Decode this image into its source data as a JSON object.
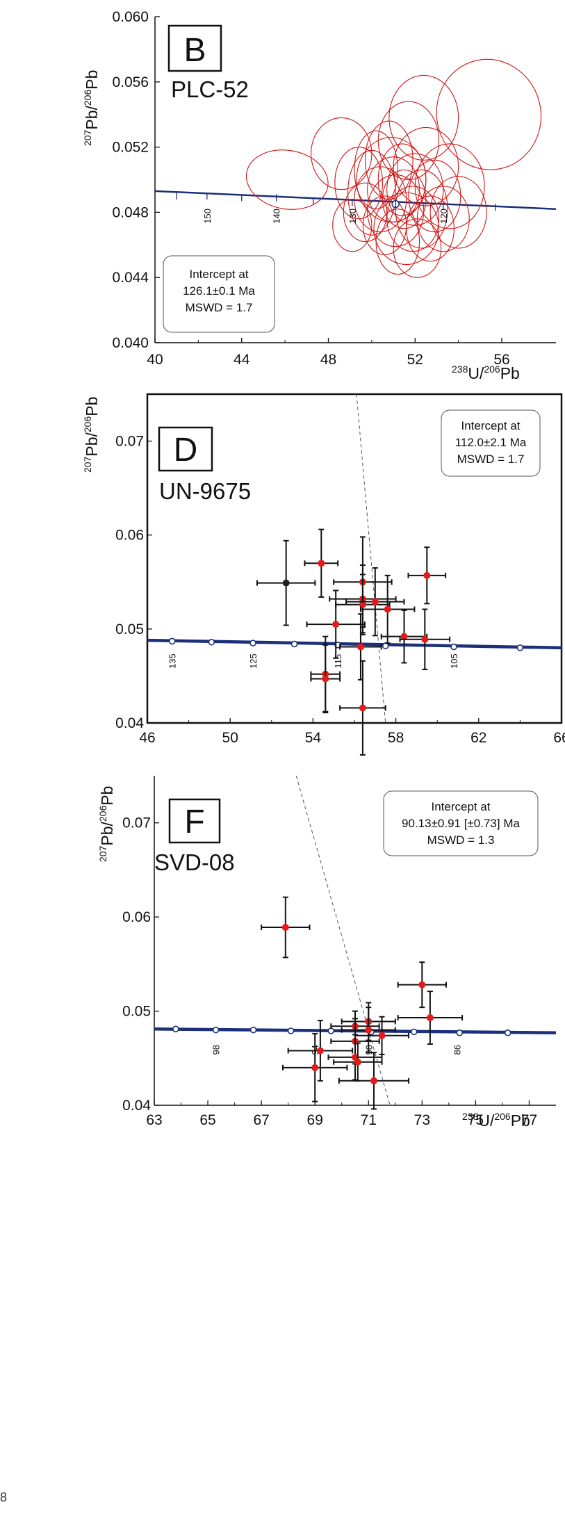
{
  "edge_mark": "8",
  "chart_data": [
    {
      "id": "B",
      "type": "scatter",
      "panel_letter": "B",
      "sample": "PLC-52",
      "xlabel": "238U/206Pb",
      "ylabel": "207Pb/206Pb",
      "xlim": [
        40,
        58.5
      ],
      "ylim": [
        0.04,
        0.06
      ],
      "xticks": [
        "40",
        "44",
        "48",
        "52",
        "56"
      ],
      "yticks": [
        "0.040",
        "0.044",
        "0.048",
        "0.052",
        "0.056",
        "0.060"
      ],
      "intercept": [
        "Intercept at",
        "126.1±0.1 Ma",
        "MSWD = 1.7"
      ],
      "concordia": {
        "ages": [
          150,
          140,
          130,
          120
        ],
        "points": [
          [
            41.0,
            0.049
          ],
          [
            42.4,
            0.049
          ],
          [
            44.0,
            0.0489
          ],
          [
            45.6,
            0.0489
          ],
          [
            47.3,
            0.0487
          ],
          [
            49.1,
            0.0486
          ],
          [
            51.1,
            0.0485
          ],
          [
            53.3,
            0.0484
          ],
          [
            55.7,
            0.0483
          ]
        ],
        "line": [
          [
            40,
            0.0493
          ],
          [
            58.5,
            0.0482
          ]
        ]
      },
      "ellipses": [
        [
          46.1,
          0.05,
          1.9,
          0.0018,
          10
        ],
        [
          48.6,
          0.0516,
          1.4,
          0.0022,
          0
        ],
        [
          49.4,
          0.0498,
          1.1,
          0.0022,
          0
        ],
        [
          49.7,
          0.048,
          1.0,
          0.0018,
          0
        ],
        [
          50.2,
          0.0506,
          1.0,
          0.0024,
          0
        ],
        [
          50.4,
          0.0488,
          1.2,
          0.002,
          0
        ],
        [
          50.6,
          0.0472,
          1.0,
          0.0018,
          0
        ],
        [
          50.8,
          0.0512,
          1.1,
          0.0024,
          0
        ],
        [
          51.0,
          0.0494,
          1.2,
          0.002,
          0
        ],
        [
          51.1,
          0.0481,
          1.3,
          0.0022,
          0
        ],
        [
          51.2,
          0.0462,
          1.0,
          0.002,
          0
        ],
        [
          51.4,
          0.05,
          1.1,
          0.0022,
          0
        ],
        [
          51.5,
          0.0488,
          1.0,
          0.0018,
          0
        ],
        [
          51.7,
          0.0524,
          1.4,
          0.0024,
          0
        ],
        [
          51.9,
          0.0476,
          1.2,
          0.002,
          0
        ],
        [
          52.0,
          0.0494,
          1.3,
          0.0022,
          0
        ],
        [
          52.1,
          0.0458,
          1.1,
          0.0018,
          0
        ],
        [
          52.3,
          0.0482,
          1.2,
          0.0024,
          0
        ],
        [
          52.5,
          0.0508,
          1.5,
          0.0024,
          0
        ],
        [
          52.7,
          0.047,
          1.1,
          0.002,
          0
        ],
        [
          52.9,
          0.049,
          1.2,
          0.0022,
          0
        ],
        [
          53.3,
          0.0476,
          1.2,
          0.002,
          0
        ],
        [
          53.6,
          0.0496,
          1.6,
          0.0026,
          0
        ],
        [
          54.0,
          0.048,
          1.3,
          0.0022,
          0
        ],
        [
          50.0,
          0.0492,
          1.1,
          0.0026,
          0
        ],
        [
          51.6,
          0.047,
          1.5,
          0.0022,
          0
        ],
        [
          52.4,
          0.0538,
          1.6,
          0.0026,
          0
        ],
        [
          55.4,
          0.054,
          2.4,
          0.0034,
          -15
        ],
        [
          49.1,
          0.0472,
          0.9,
          0.0016,
          0
        ],
        [
          50.9,
          0.05,
          1.6,
          0.0026,
          0
        ]
      ]
    },
    {
      "id": "D",
      "type": "scatter",
      "panel_letter": "D",
      "sample": "UN-9675",
      "xlabel": "",
      "ylabel": "207Pb/206Pb",
      "xlim": [
        46,
        66
      ],
      "ylim": [
        0.04,
        0.075
      ],
      "xticks": [
        "46",
        "50",
        "54",
        "58",
        "62",
        "66"
      ],
      "yticks": [
        "0.04",
        "0.05",
        "0.06",
        "0.07"
      ],
      "intercept": [
        "Intercept at",
        "112.0±2.1 Ma",
        "MSWD = 1.7"
      ],
      "concordia": {
        "ages": [
          135,
          125,
          115,
          105
        ],
        "age_label_x": [
          47.2,
          51.1,
          55.2,
          60.8
        ],
        "points": [
          [
            47.2,
            0.0487
          ],
          [
            49.1,
            0.0486
          ],
          [
            51.1,
            0.0485
          ],
          [
            53.1,
            0.0484
          ],
          [
            55.2,
            0.0483
          ],
          [
            57.5,
            0.0482
          ],
          [
            60.8,
            0.0481
          ],
          [
            64.0,
            0.048
          ]
        ],
        "line": [
          [
            46,
            0.0488
          ],
          [
            66,
            0.048
          ]
        ]
      },
      "discordia": [
        [
          56.1,
          0.075
        ],
        [
          57.5,
          0.04
        ]
      ],
      "points": [
        {
          "x": 52.7,
          "y": 0.0549,
          "ex": 1.4,
          "ey": 0.0045,
          "c": "black"
        },
        {
          "x": 54.4,
          "y": 0.057,
          "ex": 0.8,
          "ey": 0.0036,
          "c": "red"
        },
        {
          "x": 56.4,
          "y": 0.055,
          "ex": 1.4,
          "ey": 0.0048,
          "c": "red"
        },
        {
          "x": 59.5,
          "y": 0.0557,
          "ex": 0.9,
          "ey": 0.003,
          "c": "red"
        },
        {
          "x": 56.4,
          "y": 0.0532,
          "ex": 1.6,
          "ey": 0.0036,
          "c": "red"
        },
        {
          "x": 56.4,
          "y": 0.0526,
          "ex": 1.3,
          "ey": 0.0032,
          "c": "red"
        },
        {
          "x": 57.0,
          "y": 0.0529,
          "ex": 1.4,
          "ey": 0.0036,
          "c": "red"
        },
        {
          "x": 57.6,
          "y": 0.0521,
          "ex": 1.3,
          "ey": 0.0036,
          "c": "red"
        },
        {
          "x": 55.1,
          "y": 0.0505,
          "ex": 1.4,
          "ey": 0.0036,
          "c": "red"
        },
        {
          "x": 58.4,
          "y": 0.0492,
          "ex": 1.1,
          "ey": 0.0028,
          "c": "red"
        },
        {
          "x": 59.4,
          "y": 0.0489,
          "ex": 1.2,
          "ey": 0.0032,
          "c": "red"
        },
        {
          "x": 56.3,
          "y": 0.0481,
          "ex": 1.0,
          "ey": 0.0035,
          "c": "red"
        },
        {
          "x": 54.6,
          "y": 0.0452,
          "ex": 0.7,
          "ey": 0.004,
          "c": "red"
        },
        {
          "x": 54.6,
          "y": 0.0447,
          "ex": 0.7,
          "ey": 0.0036,
          "c": "red"
        },
        {
          "x": 56.4,
          "y": 0.0416,
          "ex": 1.1,
          "ey": 0.005,
          "c": "red"
        }
      ]
    },
    {
      "id": "F",
      "type": "scatter",
      "panel_letter": "F",
      "sample": "SVD-08",
      "xlabel": "238U/206Pb",
      "ylabel": "207Pb/206Pb",
      "xlim": [
        63,
        78
      ],
      "ylim": [
        0.04,
        0.075
      ],
      "xticks": [
        "63",
        "65",
        "67",
        "69",
        "71",
        "73",
        "75",
        "77"
      ],
      "yticks": [
        "0.04",
        "0.05",
        "0.06",
        "0.07"
      ],
      "intercept": [
        "Intercept at",
        "90.13±0.91   [±0.73]  Ma",
        "MSWD = 1.3"
      ],
      "concordia": {
        "ages": [
          98,
          94,
          90,
          86
        ],
        "age_label_x": [
          65.3,
          69.0,
          71.0,
          74.3
        ],
        "points": [
          [
            63.8,
            0.0481
          ],
          [
            65.3,
            0.048
          ],
          [
            66.7,
            0.048
          ],
          [
            68.1,
            0.0479
          ],
          [
            69.6,
            0.0479
          ],
          [
            71.1,
            0.0478
          ],
          [
            72.7,
            0.0478
          ],
          [
            74.4,
            0.0477
          ],
          [
            76.2,
            0.0477
          ]
        ],
        "line": [
          [
            63,
            0.0481
          ],
          [
            78,
            0.0477
          ]
        ]
      },
      "discordia": [
        [
          68.3,
          0.075
        ],
        [
          71.8,
          0.04
        ]
      ],
      "points": [
        {
          "x": 67.9,
          "y": 0.0589,
          "ex": 0.9,
          "ey": 0.0032,
          "c": "red"
        },
        {
          "x": 73.0,
          "y": 0.0528,
          "ex": 0.9,
          "ey": 0.0024,
          "c": "red"
        },
        {
          "x": 73.3,
          "y": 0.0493,
          "ex": 1.2,
          "ey": 0.0028,
          "c": "red"
        },
        {
          "x": 71.0,
          "y": 0.0489,
          "ex": 1.0,
          "ey": 0.002,
          "c": "red"
        },
        {
          "x": 70.5,
          "y": 0.0484,
          "ex": 0.9,
          "ey": 0.0016,
          "c": "red"
        },
        {
          "x": 71.0,
          "y": 0.048,
          "ex": 1.0,
          "ey": 0.0024,
          "c": "red"
        },
        {
          "x": 71.5,
          "y": 0.0474,
          "ex": 1.0,
          "ey": 0.002,
          "c": "red"
        },
        {
          "x": 70.5,
          "y": 0.0468,
          "ex": 0.9,
          "ey": 0.0024,
          "c": "red"
        },
        {
          "x": 69.2,
          "y": 0.0458,
          "ex": 1.2,
          "ey": 0.0032,
          "c": "red"
        },
        {
          "x": 70.5,
          "y": 0.0451,
          "ex": 1.0,
          "ey": 0.0024,
          "c": "red"
        },
        {
          "x": 70.6,
          "y": 0.0446,
          "ex": 0.9,
          "ey": 0.002,
          "c": "red"
        },
        {
          "x": 69.0,
          "y": 0.044,
          "ex": 1.2,
          "ey": 0.0036,
          "c": "red"
        },
        {
          "x": 71.2,
          "y": 0.0426,
          "ex": 1.3,
          "ey": 0.003,
          "c": "red"
        }
      ]
    }
  ]
}
